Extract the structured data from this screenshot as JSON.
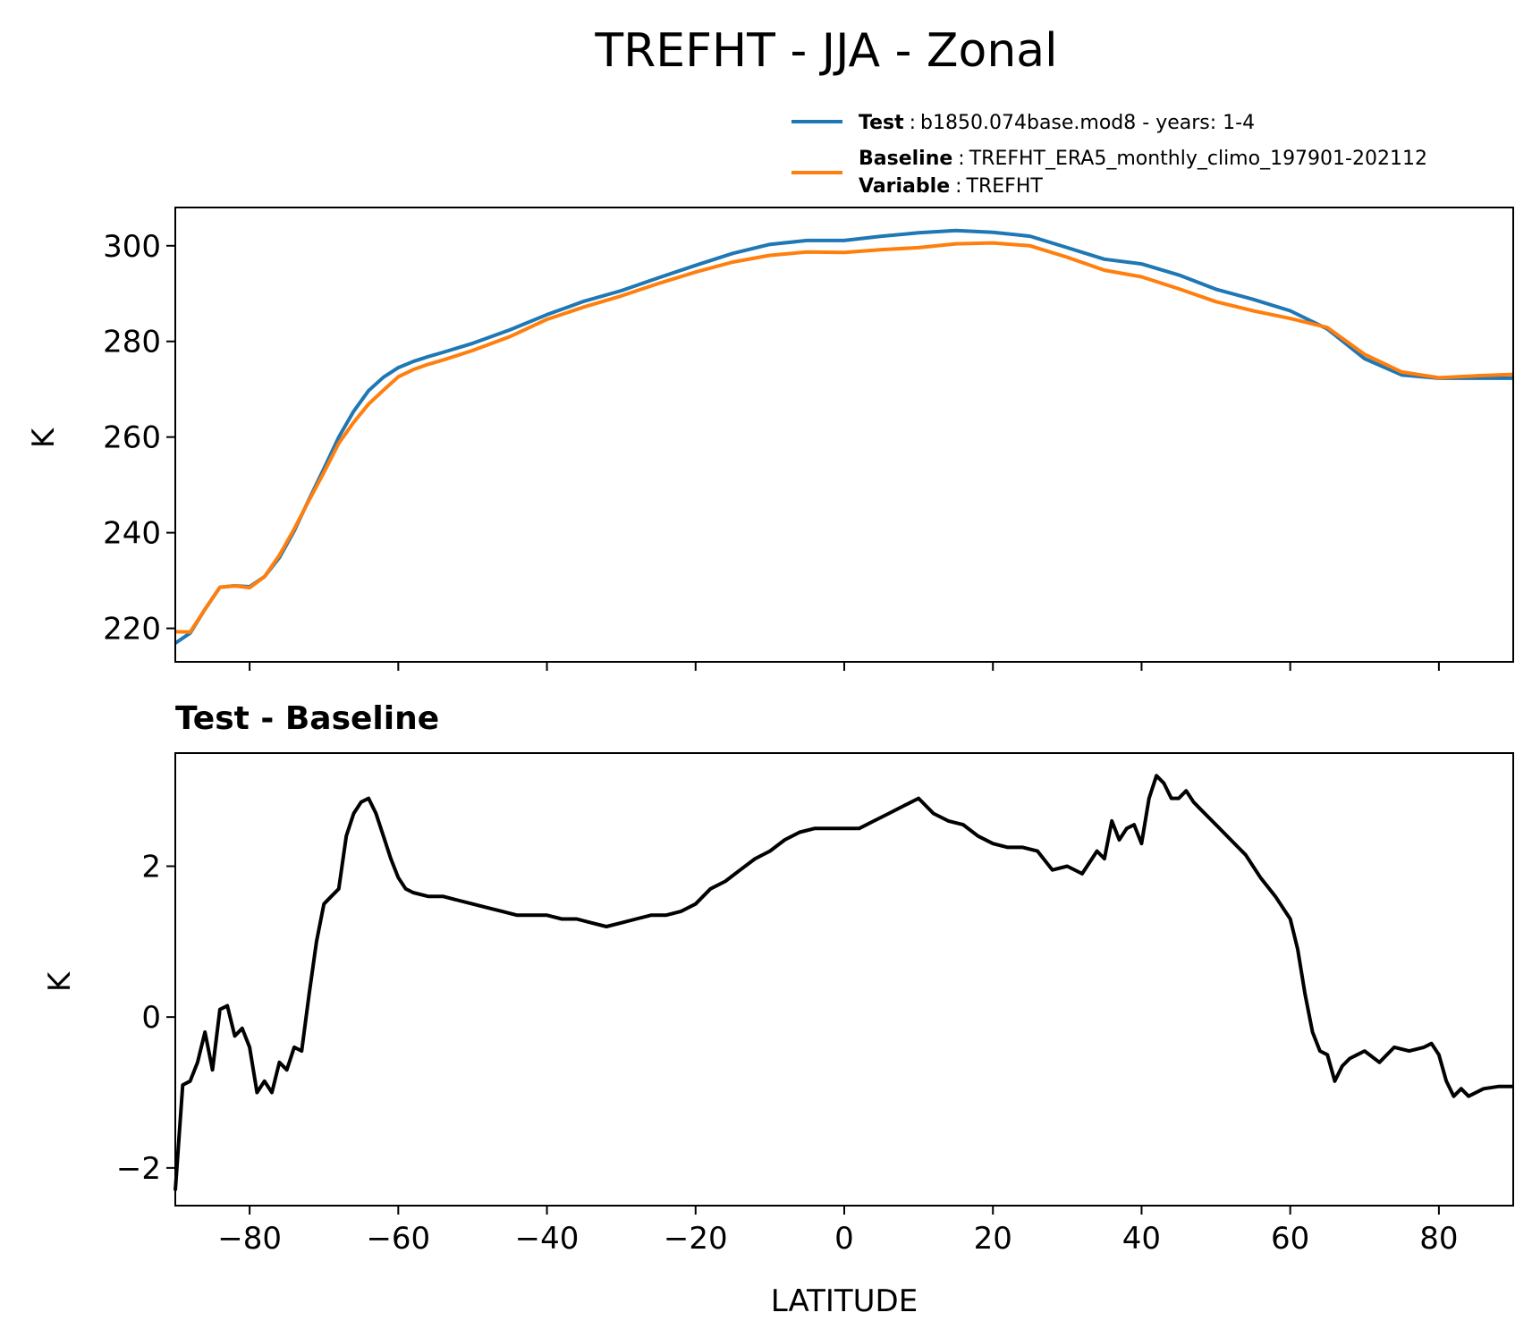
{
  "chart_data": [
    {
      "type": "line",
      "panel": "top",
      "title": "TREFHT - JJA - Zonal",
      "ylabel": "K",
      "xlim": [
        -90,
        90
      ],
      "ylim": [
        213,
        308
      ],
      "xticks": [
        -80,
        -60,
        -40,
        -20,
        0,
        20,
        40,
        60,
        80
      ],
      "yticks": [
        220,
        240,
        260,
        280,
        300
      ],
      "ytick_labels": [
        "220",
        "240",
        "260",
        "280",
        "300"
      ],
      "legend": {
        "placement": "above-right",
        "entries": [
          {
            "key": "Test",
            "sep": ":",
            "text": "b1850.074base.mod8 - years: 1-4"
          },
          {
            "key": "Baseline",
            "sep": ":",
            "text": "TREFHT_ERA5_monthly_climo_197901-202112"
          },
          {
            "key": "Variable",
            "sep": ":",
            "text": "TREFHT"
          }
        ]
      },
      "x": [
        -90,
        -88,
        -86,
        -84,
        -82,
        -80,
        -78,
        -76,
        -74,
        -72,
        -70,
        -68,
        -66,
        -64,
        -62,
        -60,
        -58,
        -56,
        -54,
        -50,
        -45,
        -40,
        -35,
        -30,
        -25,
        -20,
        -15,
        -10,
        -5,
        0,
        5,
        10,
        15,
        20,
        25,
        30,
        35,
        40,
        45,
        50,
        55,
        60,
        65,
        70,
        75,
        80,
        85,
        90
      ],
      "series": [
        {
          "name": "Test",
          "color": "#1f77b4",
          "values": [
            216.9,
            219.0,
            224.0,
            228.6,
            228.9,
            228.7,
            230.8,
            234.8,
            240.4,
            247.0,
            253.4,
            260.0,
            265.4,
            269.7,
            272.5,
            274.5,
            275.8,
            276.8,
            277.7,
            279.6,
            282.4,
            285.6,
            288.4,
            290.6,
            293.3,
            295.9,
            298.4,
            300.3,
            301.1,
            301.1,
            302.0,
            302.7,
            303.2,
            302.8,
            302.0,
            299.6,
            297.2,
            296.2,
            293.9,
            290.9,
            288.8,
            286.4,
            282.6,
            276.4,
            273.0,
            272.3,
            272.3,
            272.3
          ]
        },
        {
          "name": "Baseline",
          "color": "#ff7f0e",
          "values": [
            219.3,
            219.2,
            224.0,
            228.6,
            228.9,
            228.5,
            230.8,
            235.3,
            240.8,
            246.8,
            252.6,
            258.7,
            263.1,
            266.9,
            269.8,
            272.6,
            274.1,
            275.2,
            276.1,
            278.1,
            281.0,
            284.6,
            287.2,
            289.5,
            292.1,
            294.5,
            296.6,
            298.0,
            298.7,
            298.6,
            299.2,
            299.6,
            300.4,
            300.6,
            300.0,
            297.6,
            294.9,
            293.5,
            291.0,
            288.3,
            286.4,
            284.8,
            282.9,
            277.3,
            273.6,
            272.4,
            272.8,
            273.1
          ]
        }
      ]
    },
    {
      "type": "line",
      "panel": "bottom",
      "title": "Test - Baseline",
      "xlabel": "LATITUDE",
      "ylabel": "K",
      "xlim": [
        -90,
        90
      ],
      "ylim": [
        -2.5,
        3.5
      ],
      "xticks": [
        -80,
        -60,
        -40,
        -20,
        0,
        20,
        40,
        60,
        80
      ],
      "xtick_labels": [
        "−80",
        "−60",
        "−40",
        "−20",
        "0",
        "20",
        "40",
        "60",
        "80"
      ],
      "yticks": [
        -2,
        0,
        2
      ],
      "ytick_labels": [
        "−2",
        "0",
        "2"
      ],
      "x": [
        -90,
        -89,
        -88,
        -87,
        -86,
        -85,
        -84,
        -83,
        -82,
        -81,
        -80,
        -79,
        -78,
        -77,
        -76,
        -75,
        -74,
        -73,
        -72,
        -71,
        -70,
        -69,
        -68,
        -67,
        -66,
        -65,
        -64,
        -63,
        -62,
        -61,
        -60,
        -59,
        -58,
        -56,
        -54,
        -52,
        -50,
        -48,
        -46,
        -44,
        -42,
        -40,
        -38,
        -36,
        -34,
        -32,
        -30,
        -28,
        -26,
        -24,
        -22,
        -20,
        -18,
        -16,
        -14,
        -12,
        -10,
        -8,
        -6,
        -4,
        -2,
        0,
        2,
        4,
        6,
        8,
        10,
        12,
        14,
        16,
        18,
        20,
        22,
        24,
        26,
        28,
        30,
        32,
        34,
        35,
        36,
        37,
        38,
        39,
        40,
        41,
        42,
        43,
        44,
        45,
        46,
        47,
        48,
        50,
        52,
        54,
        56,
        58,
        60,
        61,
        62,
        63,
        64,
        65,
        66,
        67,
        68,
        69,
        70,
        72,
        74,
        76,
        78,
        79,
        80,
        81,
        82,
        83,
        84,
        86,
        88,
        90
      ],
      "series": [
        {
          "name": "Test - Baseline",
          "color": "#000000",
          "values": [
            -2.3,
            -0.9,
            -0.85,
            -0.6,
            -0.2,
            -0.7,
            0.1,
            0.15,
            -0.25,
            -0.15,
            -0.4,
            -1.0,
            -0.85,
            -1.0,
            -0.6,
            -0.7,
            -0.4,
            -0.45,
            0.3,
            1.0,
            1.5,
            1.6,
            1.7,
            2.4,
            2.7,
            2.85,
            2.9,
            2.7,
            2.4,
            2.1,
            1.85,
            1.7,
            1.65,
            1.6,
            1.6,
            1.55,
            1.5,
            1.45,
            1.4,
            1.35,
            1.35,
            1.35,
            1.3,
            1.3,
            1.25,
            1.2,
            1.25,
            1.3,
            1.35,
            1.35,
            1.4,
            1.5,
            1.7,
            1.8,
            1.95,
            2.1,
            2.2,
            2.35,
            2.45,
            2.5,
            2.5,
            2.5,
            2.5,
            2.6,
            2.7,
            2.8,
            2.9,
            2.7,
            2.6,
            2.55,
            2.4,
            2.3,
            2.25,
            2.25,
            2.2,
            1.95,
            2.0,
            1.9,
            2.2,
            2.1,
            2.6,
            2.35,
            2.5,
            2.55,
            2.3,
            2.9,
            3.2,
            3.1,
            2.9,
            2.9,
            3.0,
            2.85,
            2.75,
            2.55,
            2.35,
            2.15,
            1.85,
            1.6,
            1.3,
            0.9,
            0.3,
            -0.2,
            -0.45,
            -0.5,
            -0.85,
            -0.65,
            -0.55,
            -0.5,
            -0.45,
            -0.6,
            -0.4,
            -0.45,
            -0.4,
            -0.35,
            -0.5,
            -0.85,
            -1.05,
            -0.95,
            -1.05,
            -0.95,
            -0.92,
            -0.92
          ]
        }
      ]
    }
  ]
}
